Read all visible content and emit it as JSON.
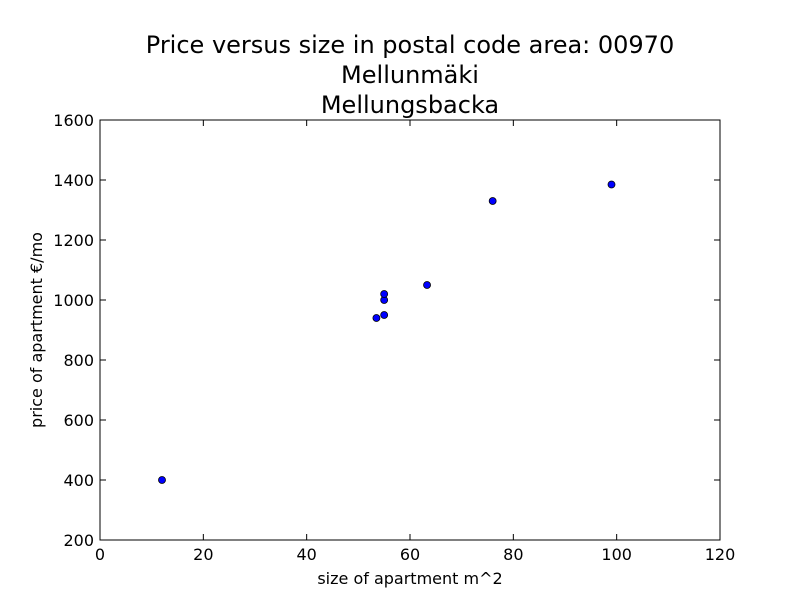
{
  "chart_data": {
    "type": "scatter",
    "title": [
      "Price versus size in postal code area: 00970",
      "Mellunmäki",
      "Mellungsbacka"
    ],
    "x_label": "size of apartment m^2",
    "y_label": "price of apartment €/mo",
    "series": [
      {
        "color": "#0000ff",
        "x": [
          12,
          53.5,
          55,
          55,
          55,
          63.3,
          76,
          99
        ],
        "values": [
          400,
          940,
          950,
          1000,
          1020,
          1050,
          1330,
          1385
        ]
      }
    ],
    "xlim": [
      0,
      120
    ],
    "xticks": [
      0,
      20,
      40,
      60,
      80,
      100,
      120
    ],
    "ylim": [
      200,
      1600
    ],
    "yticks": [
      200,
      400,
      600,
      800,
      1000,
      1200,
      1400,
      1600
    ]
  }
}
